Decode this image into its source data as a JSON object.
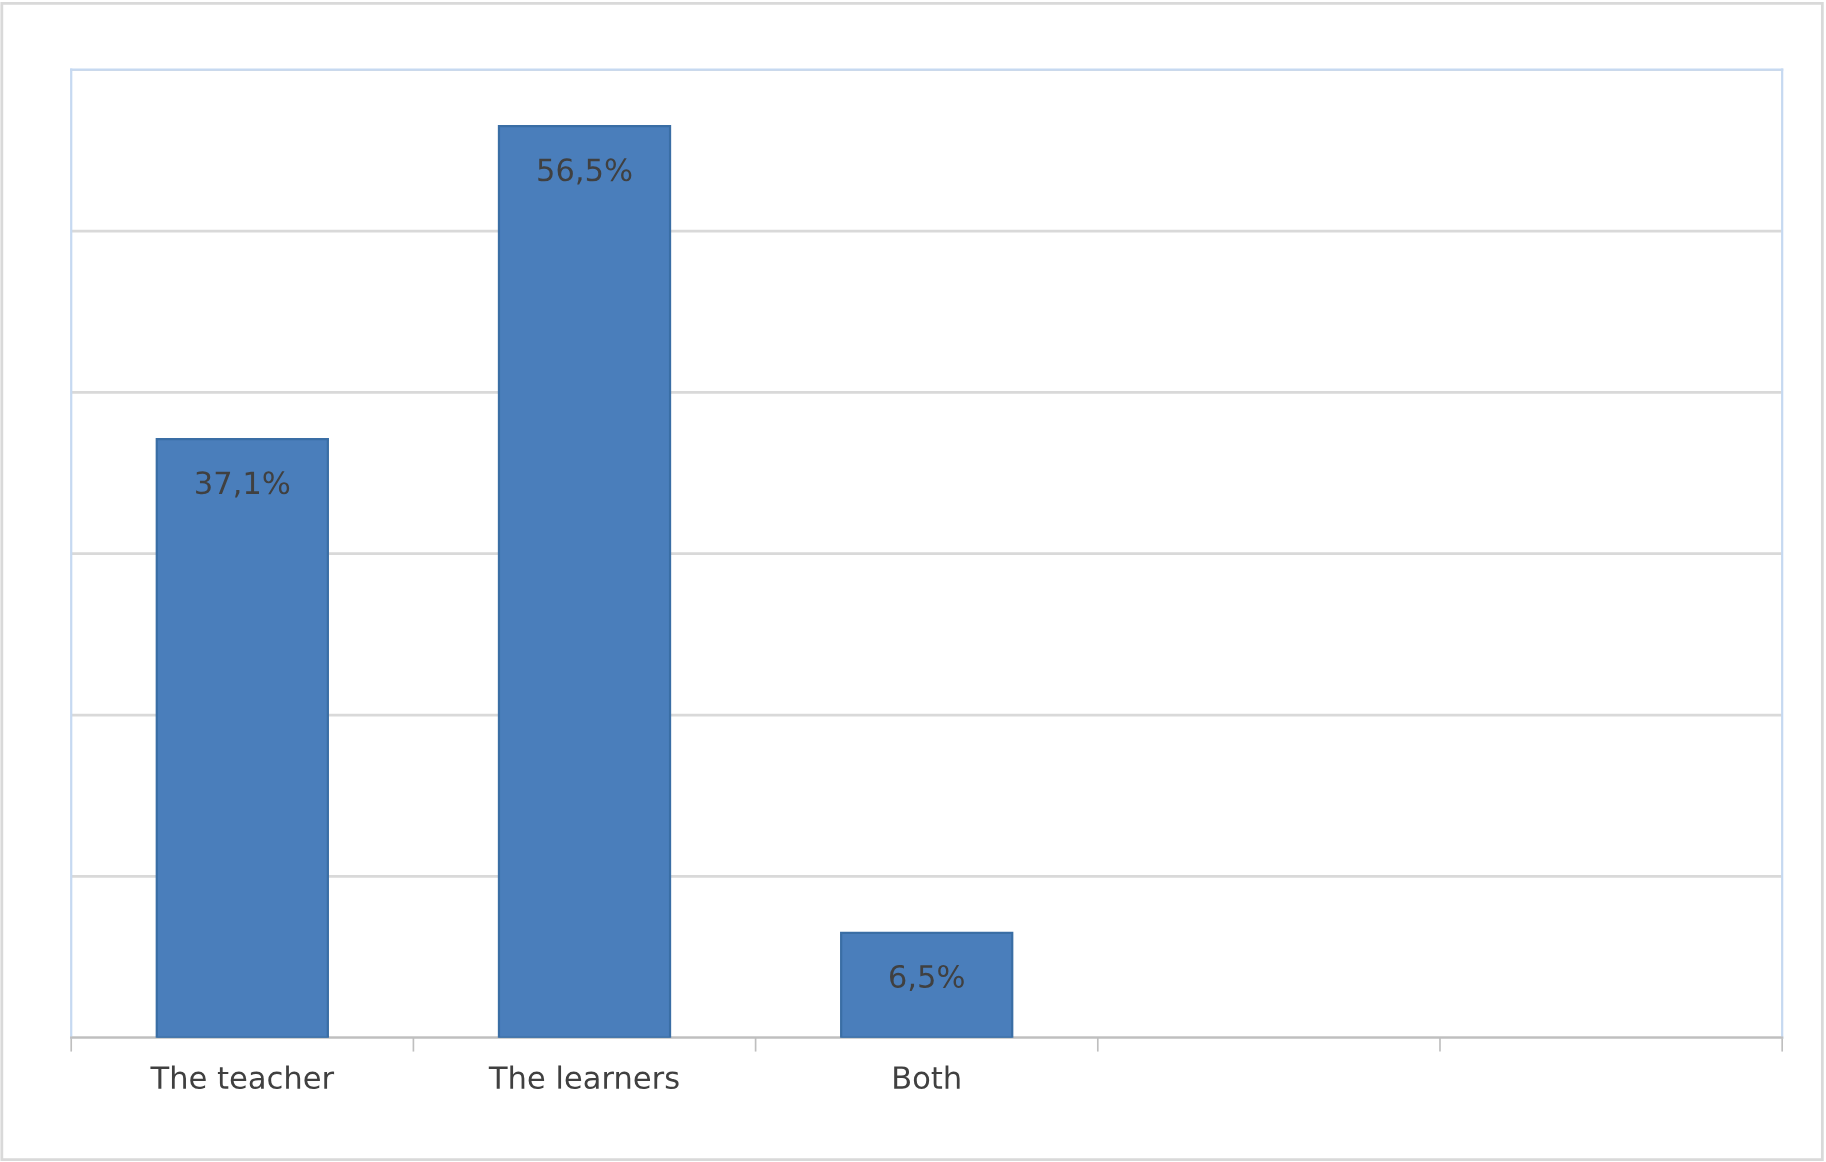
{
  "chart_data": {
    "type": "bar",
    "categories": [
      "The teacher",
      "The learners",
      "Both",
      null,
      null
    ],
    "values": [
      37.1,
      56.5,
      6.5,
      null,
      null
    ],
    "value_labels": [
      "37,1%",
      "56,5%",
      "6,5%",
      null,
      null
    ],
    "color": "#4a7ebb",
    "ylim": [
      0,
      60
    ],
    "yticks": [
      {
        "value": 0,
        "label": null
      },
      {
        "value": 10,
        "label": null
      },
      {
        "value": 20,
        "label": null
      },
      {
        "value": 30,
        "label": null
      },
      {
        "value": 40,
        "label": null
      },
      {
        "value": 50,
        "label": null
      },
      {
        "value": 60,
        "label": null
      }
    ],
    "grid": "y",
    "tick_labels": "x",
    "legend": false
  }
}
